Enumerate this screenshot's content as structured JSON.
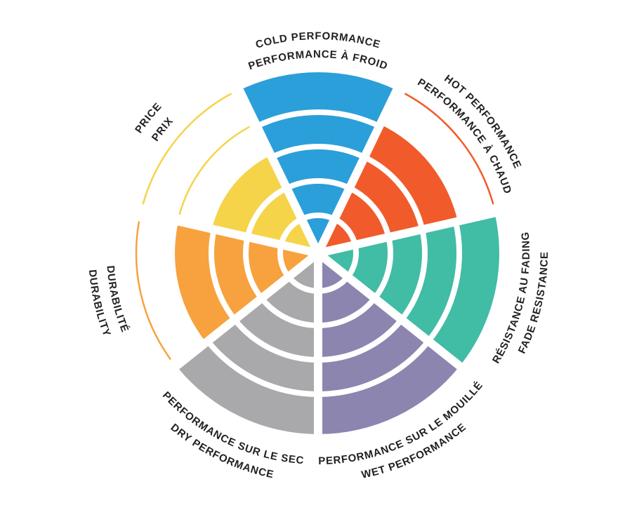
{
  "chart_data": {
    "type": "bar",
    "variant": "polar-wheel",
    "title": "",
    "scale_max": 5,
    "rings_visible": 5,
    "legend": "none",
    "background_color": "#FFFFFF",
    "label_text_color": "#231F20",
    "ring_separator_color": "#FFFFFF",
    "categories": [
      {
        "id": "cold-performance",
        "label_en": "COLD PERFORMANCE",
        "label_fr": "PERFORMANCE À FROID",
        "value": 5,
        "color": "#2B9FD9"
      },
      {
        "id": "hot-performance",
        "label_en": "HOT PERFORMANCE",
        "label_fr": "PERFORMANCE À CHAUD",
        "value": 4,
        "color": "#F15B2B"
      },
      {
        "id": "fade-resistance",
        "label_en": "FADE RESISTANCE",
        "label_fr": "RÉSISTANCE AU FADING",
        "value": 5,
        "color": "#41BCA5"
      },
      {
        "id": "wet-performance",
        "label_en": "WET PERFORMANCE",
        "label_fr": "PERFORMANCE SUR LE MOUILLÉ",
        "value": 5,
        "color": "#8B85AF"
      },
      {
        "id": "dry-performance",
        "label_en": "DRY PERFORMANCE",
        "label_fr": "PERFORMANCE SUR LE SEC",
        "value": 5,
        "color": "#A9A9AC"
      },
      {
        "id": "durability",
        "label_en": "DURABILITY",
        "label_fr": "DURABILITÉ",
        "value": 4,
        "color": "#F7A23E"
      },
      {
        "id": "price",
        "label_en": "PRICE",
        "label_fr": "PRIX",
        "value": 3,
        "color": "#F5D44A"
      }
    ]
  }
}
